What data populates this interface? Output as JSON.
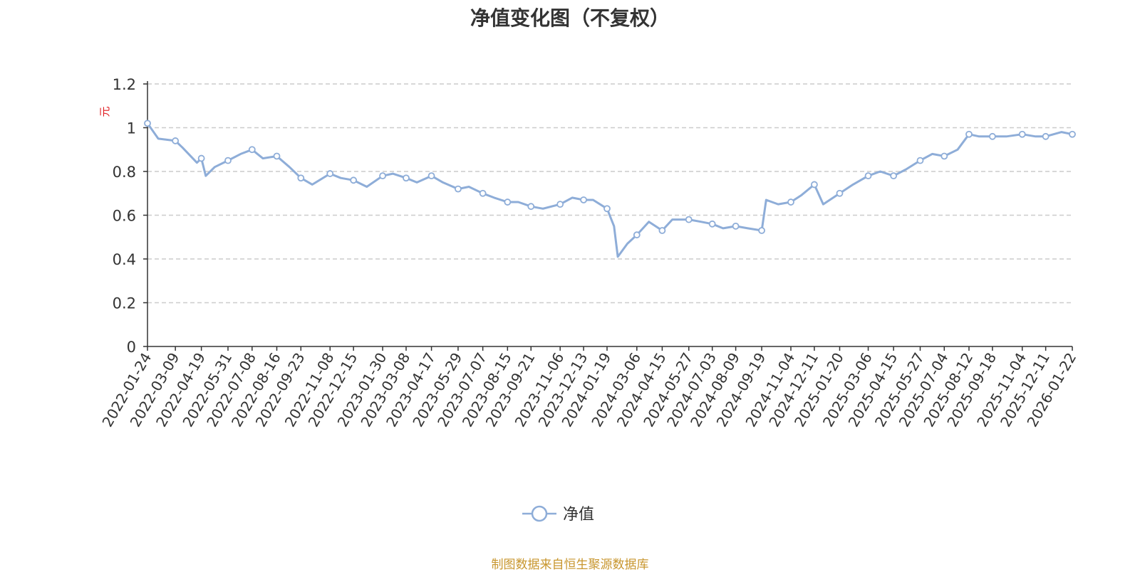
{
  "chart_data": {
    "type": "line",
    "title": "净值变化图（不复权）",
    "ylabel": "元",
    "ylim": [
      0,
      1.2
    ],
    "yticks": [
      0,
      0.2,
      0.4,
      0.6,
      0.8,
      1,
      1.2
    ],
    "y_tick_labels": [
      "0",
      "0.2",
      "0.4",
      "0.6",
      "0.8",
      "1",
      "1.2"
    ],
    "x_range": [
      "2022-01-24",
      "2026-01-22"
    ],
    "x_tick_labels": [
      "2022-01-24",
      "2022-03-09",
      "2022-04-19",
      "2022-05-31",
      "2022-07-08",
      "2022-08-16",
      "2022-09-23",
      "2022-11-08",
      "2022-12-15",
      "2023-01-30",
      "2023-03-08",
      "2023-04-17",
      "2023-05-29",
      "2023-07-07",
      "2023-08-15",
      "2023-09-21",
      "2023-11-06",
      "2023-12-13",
      "2024-01-19",
      "2024-03-06",
      "2024-04-15",
      "2024-05-27",
      "2024-07-03",
      "2024-08-09",
      "2024-09-19",
      "2024-11-04",
      "2024-12-11",
      "2025-01-20",
      "2025-03-06",
      "2025-04-15",
      "2025-05-27",
      "2025-07-04",
      "2025-08-12",
      "2025-09-18",
      "2025-11-04",
      "2025-12-11",
      "2026-01-22"
    ],
    "grid": true,
    "legend_position": "bottom-center",
    "series": [
      {
        "name": "净值",
        "color": "#8eadd8",
        "x": [
          "2022-01-24",
          "2022-02-10",
          "2022-03-09",
          "2022-03-20",
          "2022-04-12",
          "2022-04-19",
          "2022-04-26",
          "2022-05-10",
          "2022-05-31",
          "2022-06-20",
          "2022-07-08",
          "2022-07-25",
          "2022-08-16",
          "2022-09-05",
          "2022-09-23",
          "2022-10-11",
          "2022-11-08",
          "2022-11-25",
          "2022-12-15",
          "2023-01-05",
          "2023-01-30",
          "2023-02-15",
          "2023-03-08",
          "2023-03-25",
          "2023-04-17",
          "2023-05-05",
          "2023-05-29",
          "2023-06-15",
          "2023-07-07",
          "2023-07-25",
          "2023-08-15",
          "2023-09-01",
          "2023-09-21",
          "2023-10-10",
          "2023-11-06",
          "2023-11-25",
          "2023-12-13",
          "2023-12-28",
          "2024-01-19",
          "2024-01-30",
          "2024-02-05",
          "2024-02-20",
          "2024-03-06",
          "2024-03-25",
          "2024-04-15",
          "2024-05-01",
          "2024-05-27",
          "2024-06-15",
          "2024-07-03",
          "2024-07-20",
          "2024-08-09",
          "2024-08-28",
          "2024-09-19",
          "2024-09-26",
          "2024-10-15",
          "2024-11-04",
          "2024-11-20",
          "2024-12-11",
          "2024-12-25",
          "2025-01-20",
          "2025-02-10",
          "2025-03-06",
          "2025-03-25",
          "2025-04-15",
          "2025-05-05",
          "2025-05-27",
          "2025-06-15",
          "2025-07-04",
          "2025-07-25",
          "2025-08-12",
          "2025-08-28",
          "2025-09-18",
          "2025-10-10",
          "2025-11-04",
          "2025-11-25",
          "2025-12-11",
          "2026-01-05",
          "2026-01-22"
        ],
        "values": [
          1.02,
          0.95,
          0.94,
          0.91,
          0.84,
          0.86,
          0.78,
          0.82,
          0.85,
          0.88,
          0.9,
          0.86,
          0.87,
          0.82,
          0.77,
          0.74,
          0.79,
          0.77,
          0.76,
          0.73,
          0.78,
          0.79,
          0.77,
          0.75,
          0.78,
          0.75,
          0.72,
          0.73,
          0.7,
          0.68,
          0.66,
          0.66,
          0.64,
          0.63,
          0.65,
          0.68,
          0.67,
          0.67,
          0.63,
          0.55,
          0.41,
          0.47,
          0.51,
          0.57,
          0.53,
          0.58,
          0.58,
          0.57,
          0.56,
          0.54,
          0.55,
          0.54,
          0.53,
          0.67,
          0.65,
          0.66,
          0.69,
          0.74,
          0.65,
          0.7,
          0.74,
          0.78,
          0.8,
          0.78,
          0.81,
          0.85,
          0.88,
          0.87,
          0.9,
          0.97,
          0.96,
          0.96,
          0.96,
          0.97,
          0.96,
          0.96,
          0.98,
          0.97
        ],
        "markers": [
          "2022-01-24",
          "2022-03-09",
          "2022-04-19",
          "2022-05-31",
          "2022-07-08",
          "2022-08-16",
          "2022-09-23",
          "2022-11-08",
          "2022-12-15",
          "2023-01-30",
          "2023-03-08",
          "2023-04-17",
          "2023-05-29",
          "2023-07-07",
          "2023-08-15",
          "2023-09-21",
          "2023-11-06",
          "2023-12-13",
          "2024-01-19",
          "2024-03-06",
          "2024-04-15",
          "2024-05-27",
          "2024-07-03",
          "2024-08-09",
          "2024-09-19",
          "2024-11-04",
          "2024-12-11",
          "2025-01-20",
          "2025-03-06",
          "2025-04-15",
          "2025-05-27",
          "2025-07-04",
          "2025-08-12",
          "2025-09-18",
          "2025-11-04",
          "2025-12-11",
          "2026-01-22"
        ]
      }
    ]
  },
  "source_note": "制图数据来自恒生聚源数据库"
}
